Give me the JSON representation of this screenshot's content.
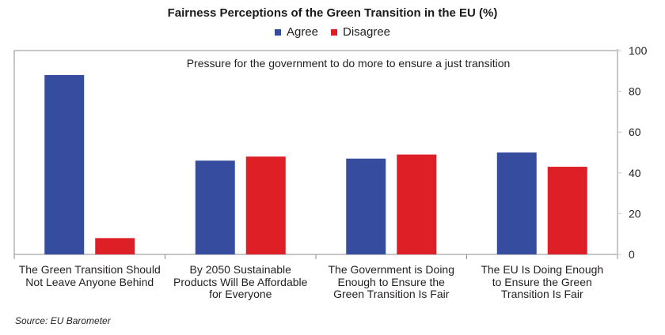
{
  "chart_data": {
    "type": "bar",
    "title": "Fairness Perceptions of the Green Transition in the EU (%)",
    "annotation": "Pressure for the government to do more to ensure a just transition",
    "categories": [
      "The Green Transition Should Not Leave Anyone Behind",
      "By 2050 Sustainable Products Will Be Affordable for Everyone",
      "The Government is Doing Enough to Ensure the Green Transition Is Fair",
      "The EU Is Doing Enough to Ensure the Green Transition Is Fair"
    ],
    "category_lines": [
      [
        "The Green Transition Should",
        "Not Leave Anyone Behind"
      ],
      [
        "By 2050 Sustainable",
        "Products Will Be Affordable",
        "for Everyone"
      ],
      [
        "The Government is Doing",
        "Enough to Ensure the",
        "Green Transition Is Fair"
      ],
      [
        "The EU Is Doing Enough",
        "to Ensure the Green",
        "Transition Is Fair"
      ]
    ],
    "series": [
      {
        "name": "Agree",
        "color": "#354c9f",
        "values": [
          88,
          46,
          47,
          50
        ]
      },
      {
        "name": "Disagree",
        "color": "#df1f26",
        "values": [
          8,
          48,
          49,
          43
        ]
      }
    ],
    "xlabel": "",
    "ylabel": "",
    "ylim": [
      0,
      100
    ],
    "yticks": [
      0,
      20,
      40,
      60,
      80,
      100
    ],
    "y_axis_side": "right",
    "grid": false,
    "legend_position": "top-center",
    "source": "Source: EU Barometer"
  }
}
